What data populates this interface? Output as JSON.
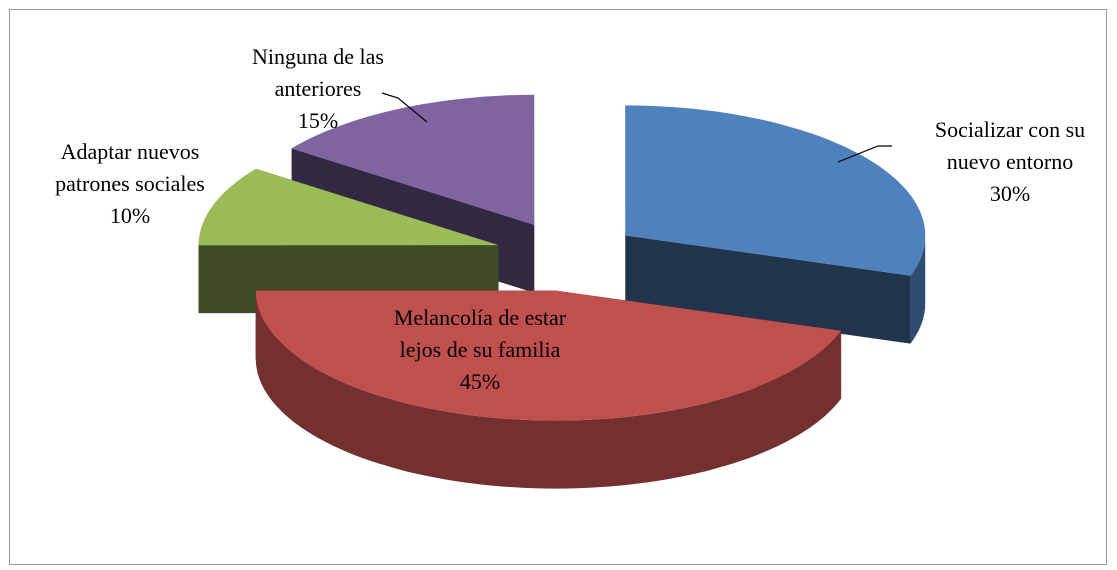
{
  "chart_data": {
    "type": "pie",
    "categories": [
      "Socializar con su nuevo entorno",
      "Melancolía de estar lejos de su familia",
      "Adaptar nuevos patrones sociales",
      "Ninguna de las anteriores"
    ],
    "values": [
      30,
      45,
      10,
      15
    ],
    "value_labels": [
      "30%",
      "45%",
      "10%",
      "15%"
    ],
    "colors": [
      "#4f81bd",
      "#c0504d",
      "#9bbb59",
      "#8064a2"
    ],
    "exploded": true,
    "three_d": true
  }
}
